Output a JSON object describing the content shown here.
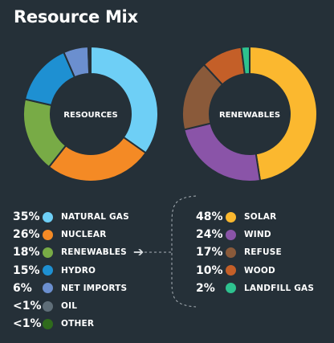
{
  "title": "Resource Mix",
  "chart_data": [
    {
      "type": "pie",
      "center_label": "RESOURCES",
      "slices": [
        {
          "label": "NATURAL GAS",
          "display": "35%",
          "value": 35,
          "color": "#6ecff6"
        },
        {
          "label": "NUCLEAR",
          "display": "26%",
          "value": 26,
          "color": "#f48a25"
        },
        {
          "label": "RENEWABLES",
          "display": "18%",
          "value": 18,
          "color": "#78ab46"
        },
        {
          "label": "HYDRO",
          "display": "15%",
          "value": 15,
          "color": "#1e90d2"
        },
        {
          "label": "NET IMPORTS",
          "display": "6%",
          "value": 6,
          "color": "#6b8fcf"
        },
        {
          "label": "OIL",
          "display": "<1%",
          "value": 0.3,
          "color": "#5f6e78"
        },
        {
          "label": "OTHER",
          "display": "<1%",
          "value": 0.3,
          "color": "#2f6b1c"
        }
      ]
    },
    {
      "type": "pie",
      "center_label": "RENEWABLES",
      "slices": [
        {
          "label": "SOLAR",
          "display": "48%",
          "value": 48,
          "color": "#fbb82f"
        },
        {
          "label": "WIND",
          "display": "24%",
          "value": 24,
          "color": "#8a54a8"
        },
        {
          "label": "REFUSE",
          "display": "17%",
          "value": 17,
          "color": "#8a5a3a"
        },
        {
          "label": "WOOD",
          "display": "10%",
          "value": 10,
          "color": "#c45f28"
        },
        {
          "label": "LANDFILL GAS",
          "display": "2%",
          "value": 2,
          "color": "#2ec28f"
        }
      ]
    }
  ],
  "icons": {
    "link_arrow": "right-arrow-icon"
  }
}
